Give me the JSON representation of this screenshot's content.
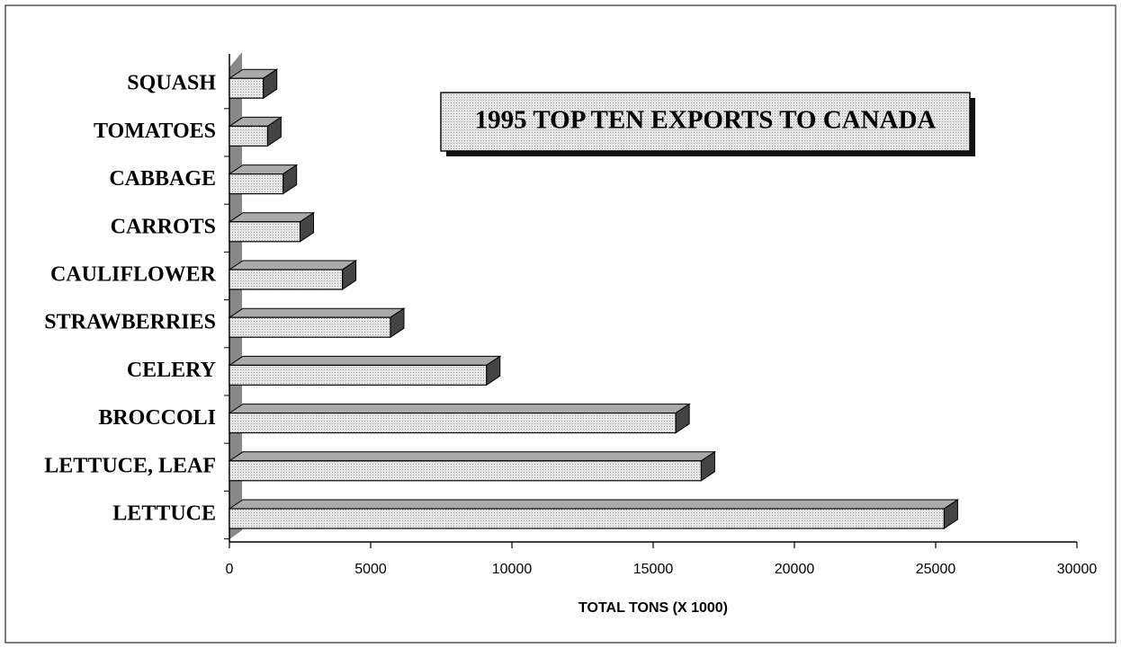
{
  "chart_data": {
    "type": "bar3d_horizontal",
    "title": "1995 TOP TEN EXPORTS TO CANADA",
    "xlabel": "TOTAL TONS (X 1000)",
    "categories": [
      "LETTUCE",
      "LETTUCE, LEAF",
      "BROCCOLI",
      "CELERY",
      "STRAWBERRIES",
      "CAULIFLOWER",
      "CARROTS",
      "CABBAGE",
      "TOMATOES",
      "SQUASH"
    ],
    "values": [
      25300,
      16700,
      15800,
      9100,
      5700,
      4000,
      2500,
      1900,
      1350,
      1200
    ],
    "xlim": [
      0,
      30000
    ],
    "xticks": [
      0,
      5000,
      10000,
      15000,
      20000,
      25000,
      30000
    ],
    "color": "#e6e6e6"
  }
}
